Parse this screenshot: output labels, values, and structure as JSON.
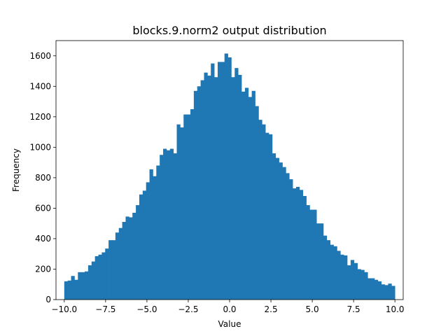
{
  "chart_data": {
    "type": "bar",
    "title": "blocks.9.norm2 output distribution",
    "xlabel": "Value",
    "ylabel": "Frequency",
    "xlim": [
      -10.5,
      10.5
    ],
    "ylim": [
      0,
      1700
    ],
    "xticks": [
      -10.0,
      -7.5,
      -5.0,
      -2.5,
      0.0,
      2.5,
      5.0,
      7.5,
      10.0
    ],
    "xtick_labels": [
      "−10.0",
      "−7.5",
      "−5.0",
      "−2.5",
      "0.0",
      "2.5",
      "5.0",
      "7.5",
      "10.0"
    ],
    "yticks": [
      0,
      200,
      400,
      600,
      800,
      1000,
      1200,
      1400,
      1600
    ],
    "ytick_labels": [
      "0",
      "200",
      "400",
      "600",
      "800",
      "1000",
      "1200",
      "1400",
      "1600"
    ],
    "grid": false,
    "color": "#1f77b4",
    "bin_start": -10.0,
    "bin_end": 10.0,
    "values": [
      120,
      125,
      155,
      130,
      180,
      180,
      185,
      225,
      250,
      285,
      295,
      310,
      335,
      390,
      390,
      440,
      470,
      510,
      545,
      540,
      570,
      620,
      690,
      715,
      770,
      855,
      810,
      880,
      950,
      990,
      980,
      990,
      960,
      1150,
      1130,
      1215,
      1215,
      1250,
      1370,
      1400,
      1440,
      1490,
      1470,
      1550,
      1460,
      1560,
      1560,
      1615,
      1590,
      1460,
      1520,
      1475,
      1365,
      1390,
      1330,
      1370,
      1270,
      1180,
      1150,
      1095,
      1085,
      960,
      930,
      900,
      870,
      830,
      790,
      730,
      740,
      720,
      680,
      620,
      590,
      590,
      500,
      500,
      420,
      390,
      360,
      350,
      320,
      295,
      290,
      225,
      260,
      240,
      200,
      195,
      180,
      140,
      140,
      130,
      120,
      100,
      95,
      105,
      90
    ]
  }
}
